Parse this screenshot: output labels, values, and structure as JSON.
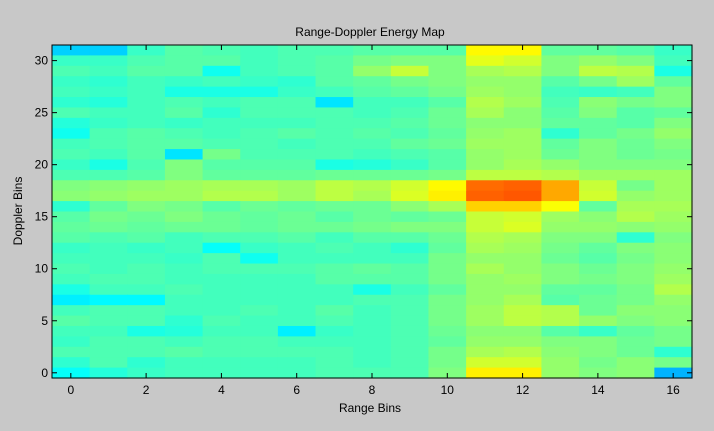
{
  "chart_data": {
    "type": "heatmap",
    "title": "Range-Doppler Energy Map",
    "xlabel": "Range Bins",
    "ylabel": "Doppler Bins",
    "xlim": [
      -0.5,
      16.5
    ],
    "ylim": [
      -0.5,
      31.5
    ],
    "xticks": [
      0,
      2,
      4,
      6,
      8,
      10,
      12,
      14,
      16
    ],
    "yticks": [
      0,
      5,
      10,
      15,
      20,
      25,
      30
    ],
    "xtick_labels": [
      "0",
      "2",
      "4",
      "6",
      "8",
      "10",
      "12",
      "14",
      "16"
    ],
    "ytick_labels": [
      "0",
      "5",
      "10",
      "15",
      "20",
      "25",
      "30"
    ],
    "colormap": "jet",
    "clim": [
      0,
      1
    ],
    "note": "values are normalized energy estimates (0 = blue, 1 = red); row index 0 = doppler bin 31 (top) ... row 31 = doppler bin 0 (bottom)",
    "x": [
      0,
      1,
      2,
      3,
      4,
      5,
      6,
      7,
      8,
      9,
      10,
      11,
      12,
      13,
      14,
      15,
      16
    ],
    "y": [
      31,
      30,
      29,
      28,
      27,
      26,
      25,
      24,
      23,
      22,
      21,
      20,
      19,
      18,
      17,
      16,
      15,
      14,
      13,
      12,
      11,
      10,
      9,
      8,
      7,
      6,
      5,
      4,
      3,
      2,
      1,
      0
    ],
    "z": [
      [
        0.33,
        0.33,
        0.43,
        0.46,
        0.45,
        0.44,
        0.45,
        0.45,
        0.46,
        0.46,
        0.46,
        0.63,
        0.63,
        0.47,
        0.47,
        0.46,
        0.43
      ],
      [
        0.43,
        0.43,
        0.45,
        0.46,
        0.46,
        0.44,
        0.45,
        0.46,
        0.49,
        0.5,
        0.5,
        0.6,
        0.58,
        0.5,
        0.52,
        0.5,
        0.44
      ],
      [
        0.45,
        0.44,
        0.46,
        0.46,
        0.39,
        0.44,
        0.45,
        0.46,
        0.52,
        0.57,
        0.5,
        0.54,
        0.55,
        0.5,
        0.56,
        0.55,
        0.4
      ],
      [
        0.43,
        0.42,
        0.44,
        0.43,
        0.44,
        0.43,
        0.42,
        0.46,
        0.47,
        0.49,
        0.5,
        0.52,
        0.52,
        0.46,
        0.49,
        0.53,
        0.47
      ],
      [
        0.44,
        0.43,
        0.44,
        0.4,
        0.4,
        0.4,
        0.43,
        0.44,
        0.46,
        0.47,
        0.49,
        0.53,
        0.52,
        0.44,
        0.43,
        0.44,
        0.5
      ],
      [
        0.42,
        0.41,
        0.44,
        0.45,
        0.44,
        0.45,
        0.45,
        0.35,
        0.44,
        0.44,
        0.46,
        0.55,
        0.53,
        0.45,
        0.51,
        0.49,
        0.5
      ],
      [
        0.45,
        0.44,
        0.44,
        0.46,
        0.42,
        0.45,
        0.45,
        0.45,
        0.44,
        0.45,
        0.48,
        0.54,
        0.51,
        0.46,
        0.5,
        0.46,
        0.47
      ],
      [
        0.41,
        0.43,
        0.44,
        0.43,
        0.44,
        0.44,
        0.44,
        0.45,
        0.45,
        0.46,
        0.48,
        0.51,
        0.51,
        0.47,
        0.47,
        0.46,
        0.5
      ],
      [
        0.39,
        0.45,
        0.46,
        0.45,
        0.44,
        0.45,
        0.46,
        0.45,
        0.46,
        0.45,
        0.47,
        0.52,
        0.53,
        0.42,
        0.47,
        0.49,
        0.52
      ],
      [
        0.44,
        0.45,
        0.46,
        0.46,
        0.45,
        0.45,
        0.44,
        0.45,
        0.45,
        0.47,
        0.48,
        0.53,
        0.53,
        0.47,
        0.5,
        0.48,
        0.5
      ],
      [
        0.45,
        0.44,
        0.46,
        0.35,
        0.49,
        0.45,
        0.45,
        0.45,
        0.44,
        0.45,
        0.46,
        0.52,
        0.53,
        0.48,
        0.5,
        0.48,
        0.49
      ],
      [
        0.43,
        0.4,
        0.45,
        0.5,
        0.46,
        0.46,
        0.46,
        0.4,
        0.41,
        0.43,
        0.46,
        0.52,
        0.54,
        0.52,
        0.5,
        0.5,
        0.5
      ],
      [
        0.45,
        0.45,
        0.46,
        0.5,
        0.47,
        0.47,
        0.47,
        0.48,
        0.48,
        0.48,
        0.49,
        0.56,
        0.56,
        0.55,
        0.53,
        0.53,
        0.53
      ],
      [
        0.5,
        0.51,
        0.52,
        0.53,
        0.54,
        0.54,
        0.53,
        0.56,
        0.55,
        0.58,
        0.63,
        0.77,
        0.78,
        0.71,
        0.57,
        0.49,
        0.53
      ],
      [
        0.51,
        0.52,
        0.53,
        0.53,
        0.55,
        0.55,
        0.53,
        0.56,
        0.54,
        0.59,
        0.64,
        0.78,
        0.79,
        0.71,
        0.58,
        0.52,
        0.53
      ],
      [
        0.42,
        0.47,
        0.5,
        0.49,
        0.46,
        0.48,
        0.47,
        0.48,
        0.48,
        0.51,
        0.54,
        0.67,
        0.67,
        0.62,
        0.47,
        0.54,
        0.54
      ],
      [
        0.46,
        0.49,
        0.48,
        0.5,
        0.48,
        0.47,
        0.48,
        0.46,
        0.48,
        0.47,
        0.48,
        0.57,
        0.58,
        0.53,
        0.51,
        0.55,
        0.53
      ],
      [
        0.47,
        0.48,
        0.47,
        0.48,
        0.48,
        0.47,
        0.48,
        0.48,
        0.49,
        0.5,
        0.5,
        0.57,
        0.59,
        0.52,
        0.52,
        0.51,
        0.52
      ],
      [
        0.46,
        0.45,
        0.46,
        0.44,
        0.45,
        0.45,
        0.46,
        0.44,
        0.46,
        0.46,
        0.48,
        0.55,
        0.54,
        0.5,
        0.5,
        0.42,
        0.5
      ],
      [
        0.43,
        0.44,
        0.43,
        0.44,
        0.38,
        0.43,
        0.44,
        0.45,
        0.44,
        0.42,
        0.47,
        0.54,
        0.53,
        0.49,
        0.47,
        0.5,
        0.51
      ],
      [
        0.44,
        0.44,
        0.44,
        0.43,
        0.45,
        0.39,
        0.44,
        0.44,
        0.44,
        0.44,
        0.49,
        0.52,
        0.52,
        0.48,
        0.46,
        0.49,
        0.51
      ],
      [
        0.45,
        0.44,
        0.45,
        0.44,
        0.45,
        0.45,
        0.45,
        0.46,
        0.47,
        0.46,
        0.49,
        0.54,
        0.52,
        0.5,
        0.48,
        0.5,
        0.52
      ],
      [
        0.44,
        0.45,
        0.45,
        0.44,
        0.44,
        0.44,
        0.44,
        0.46,
        0.46,
        0.46,
        0.49,
        0.52,
        0.53,
        0.5,
        0.49,
        0.5,
        0.53
      ],
      [
        0.4,
        0.44,
        0.44,
        0.45,
        0.44,
        0.44,
        0.44,
        0.44,
        0.4,
        0.44,
        0.47,
        0.52,
        0.52,
        0.47,
        0.47,
        0.49,
        0.55
      ],
      [
        0.36,
        0.37,
        0.37,
        0.44,
        0.44,
        0.44,
        0.44,
        0.44,
        0.45,
        0.45,
        0.49,
        0.52,
        0.54,
        0.46,
        0.48,
        0.49,
        0.52
      ],
      [
        0.44,
        0.45,
        0.45,
        0.44,
        0.44,
        0.45,
        0.44,
        0.46,
        0.44,
        0.45,
        0.49,
        0.53,
        0.56,
        0.55,
        0.48,
        0.51,
        0.51
      ],
      [
        0.46,
        0.45,
        0.45,
        0.42,
        0.45,
        0.44,
        0.44,
        0.45,
        0.44,
        0.45,
        0.49,
        0.53,
        0.56,
        0.55,
        0.52,
        0.5,
        0.51
      ],
      [
        0.44,
        0.44,
        0.4,
        0.41,
        0.44,
        0.44,
        0.36,
        0.43,
        0.44,
        0.45,
        0.48,
        0.51,
        0.51,
        0.46,
        0.43,
        0.47,
        0.49
      ],
      [
        0.43,
        0.45,
        0.45,
        0.44,
        0.45,
        0.45,
        0.44,
        0.44,
        0.44,
        0.45,
        0.47,
        0.52,
        0.52,
        0.5,
        0.5,
        0.48,
        0.49
      ],
      [
        0.45,
        0.45,
        0.45,
        0.46,
        0.45,
        0.45,
        0.45,
        0.45,
        0.44,
        0.45,
        0.49,
        0.54,
        0.55,
        0.51,
        0.5,
        0.48,
        0.42
      ],
      [
        0.42,
        0.45,
        0.42,
        0.44,
        0.44,
        0.44,
        0.44,
        0.45,
        0.44,
        0.45,
        0.49,
        0.58,
        0.58,
        0.52,
        0.49,
        0.51,
        0.49
      ],
      [
        0.38,
        0.41,
        0.43,
        0.44,
        0.44,
        0.44,
        0.44,
        0.45,
        0.45,
        0.45,
        0.5,
        0.64,
        0.64,
        0.52,
        0.5,
        0.51,
        0.3
      ]
    ]
  }
}
